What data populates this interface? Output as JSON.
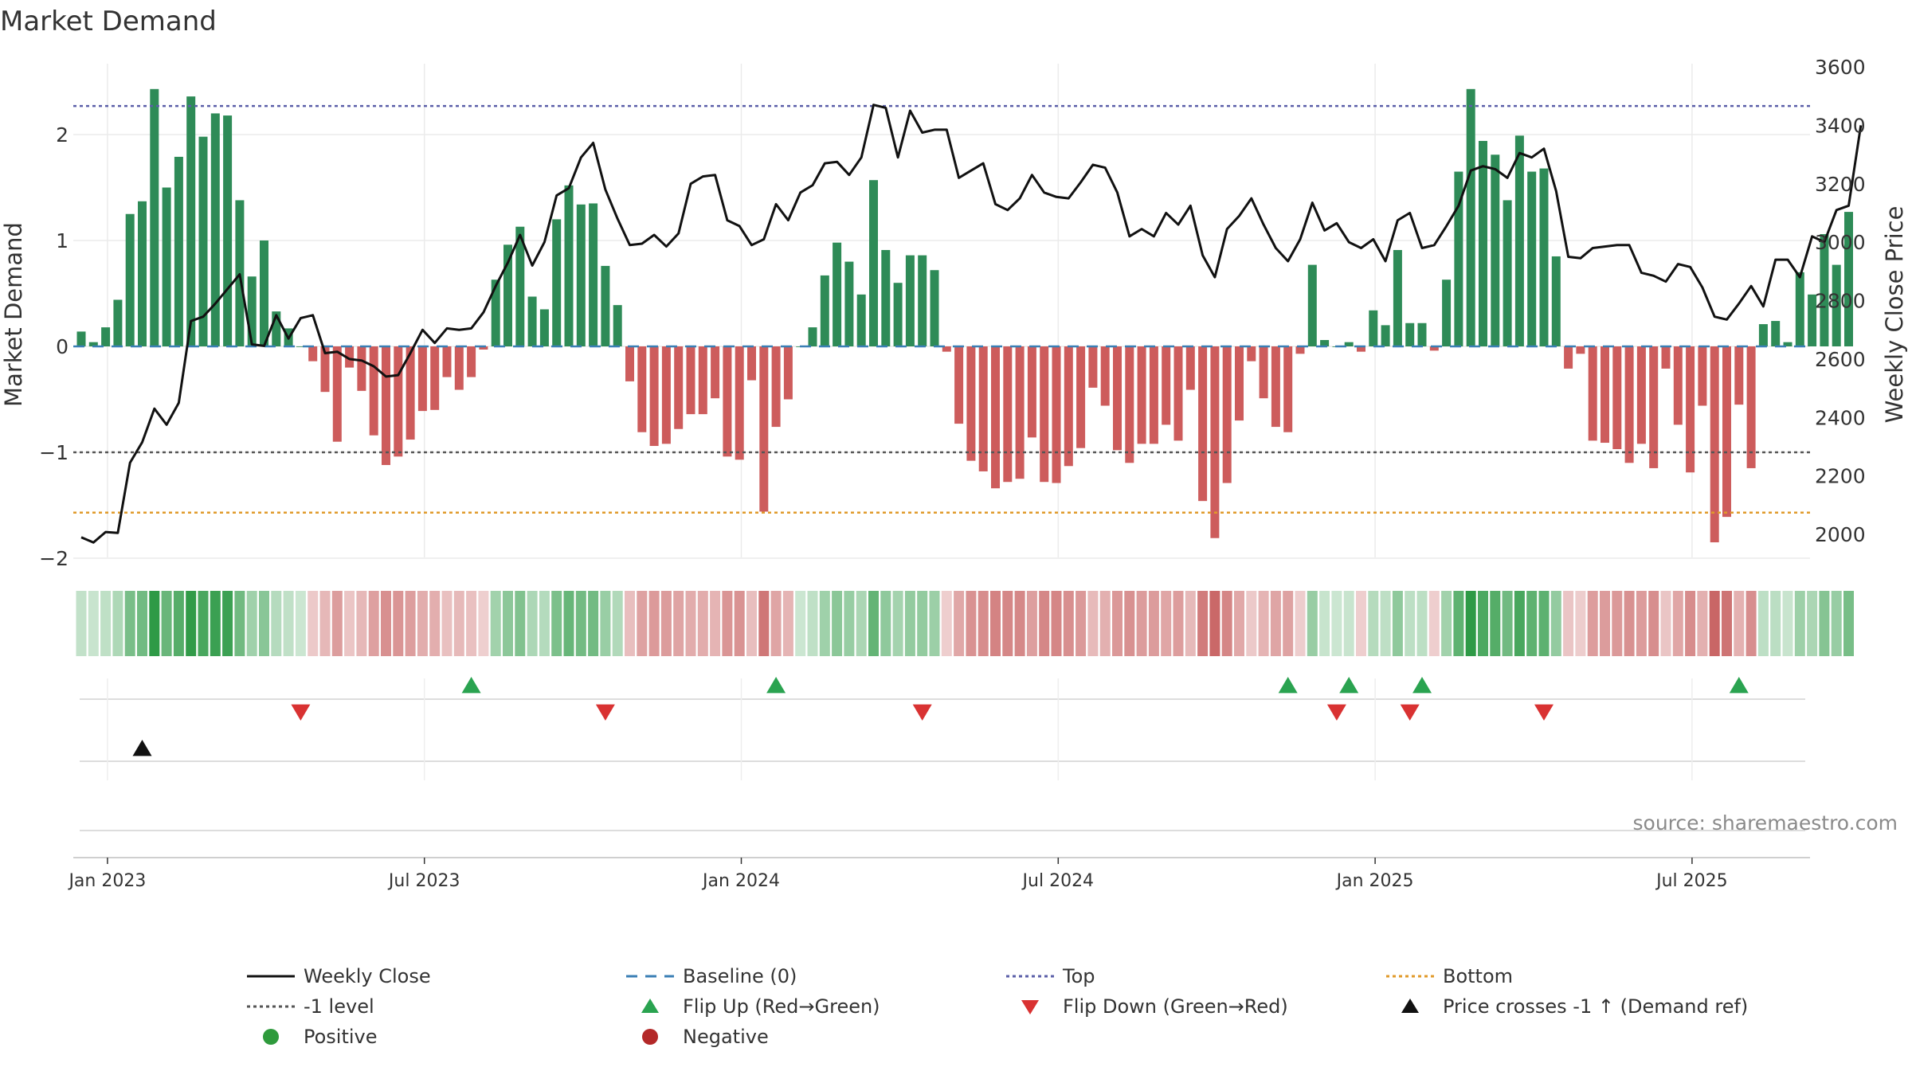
{
  "title": "Market Demand",
  "source": "source: sharemaestro.com",
  "chart_data": {
    "type": "bar",
    "title": "Market Demand",
    "ylabel": "Market Demand",
    "y2label": "Weekly Close Price",
    "ylim": [
      -2.0,
      2.5
    ],
    "y2lim": [
      1950,
      3600
    ],
    "yticks": [
      "2",
      "1",
      "0",
      "−1",
      "−2"
    ],
    "ytick_values": [
      2,
      1,
      0,
      -1,
      -2
    ],
    "y2ticks": [
      "3600",
      "3400",
      "3200",
      "3000",
      "2800",
      "2600",
      "2400",
      "2200",
      "2000"
    ],
    "y2tick_values": [
      3600,
      3400,
      3200,
      3000,
      2800,
      2600,
      2400,
      2200,
      2000
    ],
    "xticks": [
      "Jan 2023",
      "Jul 2023",
      "Jan 2024",
      "Jul 2024",
      "Jan 2025",
      "Jul 2025"
    ],
    "xtick_weeks": [
      3,
      29,
      55,
      81,
      107,
      133
    ],
    "reference_lines": {
      "baseline": 0,
      "top": 2.27,
      "minus_one": -1,
      "bottom": -1.57
    },
    "demand": [
      0.14,
      0.04,
      0.18,
      0.44,
      1.25,
      1.37,
      2.43,
      1.5,
      1.79,
      2.36,
      1.98,
      2.2,
      2.18,
      1.38,
      0.66,
      1.0,
      0.33,
      0.17,
      0.0,
      -0.14,
      -0.43,
      -0.9,
      -0.2,
      -0.42,
      -0.84,
      -1.12,
      -1.04,
      -0.88,
      -0.61,
      -0.6,
      -0.29,
      -0.41,
      -0.29,
      -0.03,
      0.63,
      0.96,
      1.13,
      0.47,
      0.35,
      1.2,
      1.52,
      1.34,
      1.35,
      0.76,
      0.39,
      -0.33,
      -0.81,
      -0.94,
      -0.92,
      -0.78,
      -0.64,
      -0.64,
      -0.49,
      -1.04,
      -1.07,
      -0.32,
      -1.56,
      -0.76,
      -0.5,
      0.0,
      0.18,
      0.67,
      0.98,
      0.8,
      0.49,
      1.57,
      0.91,
      0.6,
      0.86,
      0.86,
      0.72,
      -0.05,
      -0.73,
      -1.08,
      -1.18,
      -1.34,
      -1.28,
      -1.25,
      -0.86,
      -1.28,
      -1.29,
      -1.13,
      -0.96,
      -0.39,
      -0.56,
      -0.98,
      -1.1,
      -0.92,
      -0.92,
      -0.74,
      -0.89,
      -0.41,
      -1.46,
      -1.81,
      -1.29,
      -0.7,
      -0.14,
      -0.49,
      -0.76,
      -0.81,
      -0.07,
      0.77,
      0.06,
      0.0,
      0.04,
      -0.05,
      0.34,
      0.2,
      0.91,
      0.22,
      0.22,
      -0.04,
      0.63,
      1.65,
      2.43,
      1.94,
      1.81,
      1.38,
      1.99,
      1.65,
      1.68,
      0.85,
      -0.21,
      -0.07,
      -0.89,
      -0.91,
      -0.97,
      -1.1,
      -0.92,
      -1.15,
      -0.21,
      -0.74,
      -1.19,
      -0.56,
      -1.85,
      -1.61,
      -0.55,
      -1.15,
      0.21,
      0.24,
      0.04,
      0.7,
      0.49,
      1.06,
      0.77,
      1.27
    ],
    "price": [
      1990,
      1972,
      2008,
      2005,
      2245,
      2315,
      2430,
      2375,
      2450,
      2730,
      2745,
      2790,
      2840,
      2890,
      2650,
      2645,
      2750,
      2670,
      2740,
      2750,
      2620,
      2625,
      2600,
      2595,
      2575,
      2540,
      2545,
      2620,
      2700,
      2655,
      2705,
      2700,
      2705,
      2760,
      2850,
      2930,
      3025,
      2920,
      3000,
      3160,
      3185,
      3290,
      3340,
      3180,
      3080,
      2990,
      2995,
      3025,
      2985,
      3030,
      3200,
      3225,
      3230,
      3075,
      3055,
      2990,
      3010,
      3130,
      3075,
      3170,
      3195,
      3270,
      3275,
      3230,
      3290,
      3470,
      3460,
      3290,
      3450,
      3375,
      3385,
      3385,
      3220,
      3245,
      3270,
      3130,
      3110,
      3150,
      3230,
      3170,
      3155,
      3150,
      3205,
      3265,
      3255,
      3170,
      3020,
      3045,
      3020,
      3100,
      3060,
      3125,
      2955,
      2880,
      3045,
      3090,
      3150,
      3060,
      2980,
      2935,
      3010,
      3135,
      3040,
      3065,
      3000,
      2980,
      3010,
      2935,
      3075,
      3100,
      2980,
      2990,
      3055,
      3125,
      3245,
      3260,
      3250,
      3220,
      3305,
      3290,
      3320,
      3175,
      2950,
      2945,
      2980,
      2985,
      2990,
      2990,
      2895,
      2885,
      2865,
      2925,
      2915,
      2845,
      2745,
      2735,
      2790,
      2850,
      2780,
      2940,
      2940,
      2880,
      3020,
      3000,
      3110,
      3125,
      3400
    ],
    "flip_up_weeks": [
      32,
      57,
      99,
      104,
      110,
      136
    ],
    "flip_down_weeks": [
      18,
      43,
      69,
      103,
      109,
      120
    ],
    "cross_weeks": [
      5
    ]
  },
  "legend": [
    {
      "label": "Weekly Close",
      "type": "solid",
      "color": "#111111"
    },
    {
      "label": "Baseline (0)",
      "type": "dashed",
      "color": "#3a7fb5"
    },
    {
      "label": "Top",
      "type": "dotted",
      "color": "#5b5fa8"
    },
    {
      "label": "Bottom",
      "type": "dotted",
      "color": "#e09a2a"
    },
    {
      "label": "-1 level",
      "type": "dotted",
      "color": "#555555"
    },
    {
      "label": "Flip Up (Red→Green)",
      "type": "tri-up",
      "color": "#2aa350"
    },
    {
      "label": "Flip Down (Green→Red)",
      "type": "tri-down",
      "color": "#d93232"
    },
    {
      "label": "Price crosses -1 ↑ (Demand ref)",
      "type": "tri-up",
      "color": "#111111"
    },
    {
      "label": "Positive",
      "type": "dot",
      "color": "#2e9a3c"
    },
    {
      "label": "Negative",
      "type": "dot",
      "color": "#b32828"
    }
  ],
  "colors": {
    "positive_bar": "#2e8b57",
    "negative_bar": "#cd5c5c",
    "price_line": "#111111",
    "grid": "#ebebeb"
  }
}
